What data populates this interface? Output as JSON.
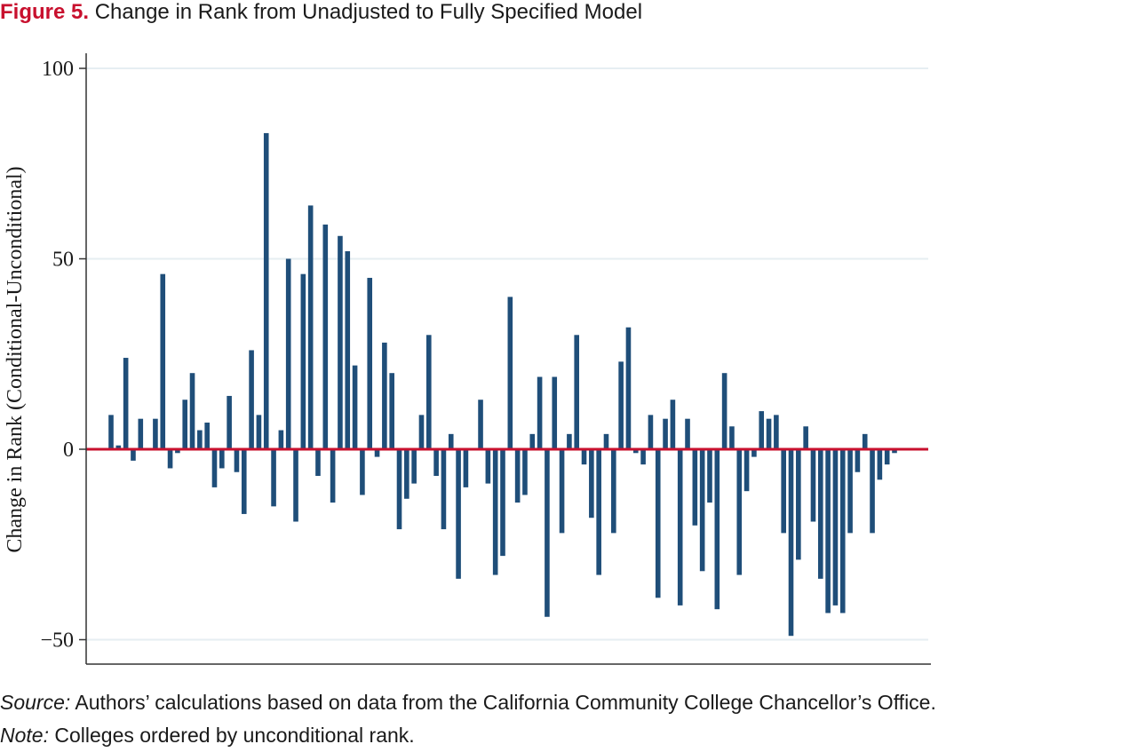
{
  "figure": {
    "label": "Figure 5.",
    "title": "Change in Rank from Unadjusted to Fully Specified Model"
  },
  "source": {
    "label": "Source:",
    "text": " Authors’ calculations based on data from the California Community College Chancellor’s Office."
  },
  "note": {
    "label": "Note:",
    "text": " Colleges ordered by unconditional rank."
  },
  "colors": {
    "bar": "#1f4e79",
    "zero_line": "#c8102e",
    "grid": "#e6eef2",
    "axis": "#333333"
  },
  "chart_data": {
    "type": "bar",
    "title": "",
    "xlabel": "",
    "ylabel": "Change in Rank (Conditional-Unconditional)",
    "ylim": [
      -55,
      100
    ],
    "yticks": [
      100,
      50,
      0,
      -50
    ],
    "ytick_labels": [
      "100",
      "50",
      "0",
      "−50"
    ],
    "grid": true,
    "reference_line": 0,
    "values": [
      9,
      1,
      24,
      -3,
      8,
      0,
      8,
      46,
      -5,
      -1,
      13,
      20,
      5,
      7,
      -10,
      -5,
      14,
      -6,
      -17,
      26,
      9,
      83,
      -15,
      5,
      50,
      -19,
      46,
      64,
      -7,
      59,
      -14,
      56,
      52,
      22,
      -12,
      45,
      -2,
      28,
      20,
      -21,
      -13,
      -9,
      9,
      30,
      -7,
      -21,
      4,
      -34,
      -10,
      0,
      13,
      -9,
      -33,
      -28,
      40,
      -14,
      -12,
      4,
      19,
      -44,
      19,
      -22,
      4,
      30,
      -4,
      -18,
      -33,
      4,
      -22,
      23,
      32,
      -1,
      -4,
      9,
      -39,
      8,
      13,
      -41,
      8,
      -20,
      -32,
      -14,
      -42,
      20,
      6,
      -33,
      -11,
      -2,
      10,
      8,
      9,
      -22,
      -49,
      -29,
      6,
      -19,
      -34,
      -43,
      -41,
      -43,
      -22,
      -6,
      4,
      -22,
      -8,
      -4,
      -1
    ]
  }
}
